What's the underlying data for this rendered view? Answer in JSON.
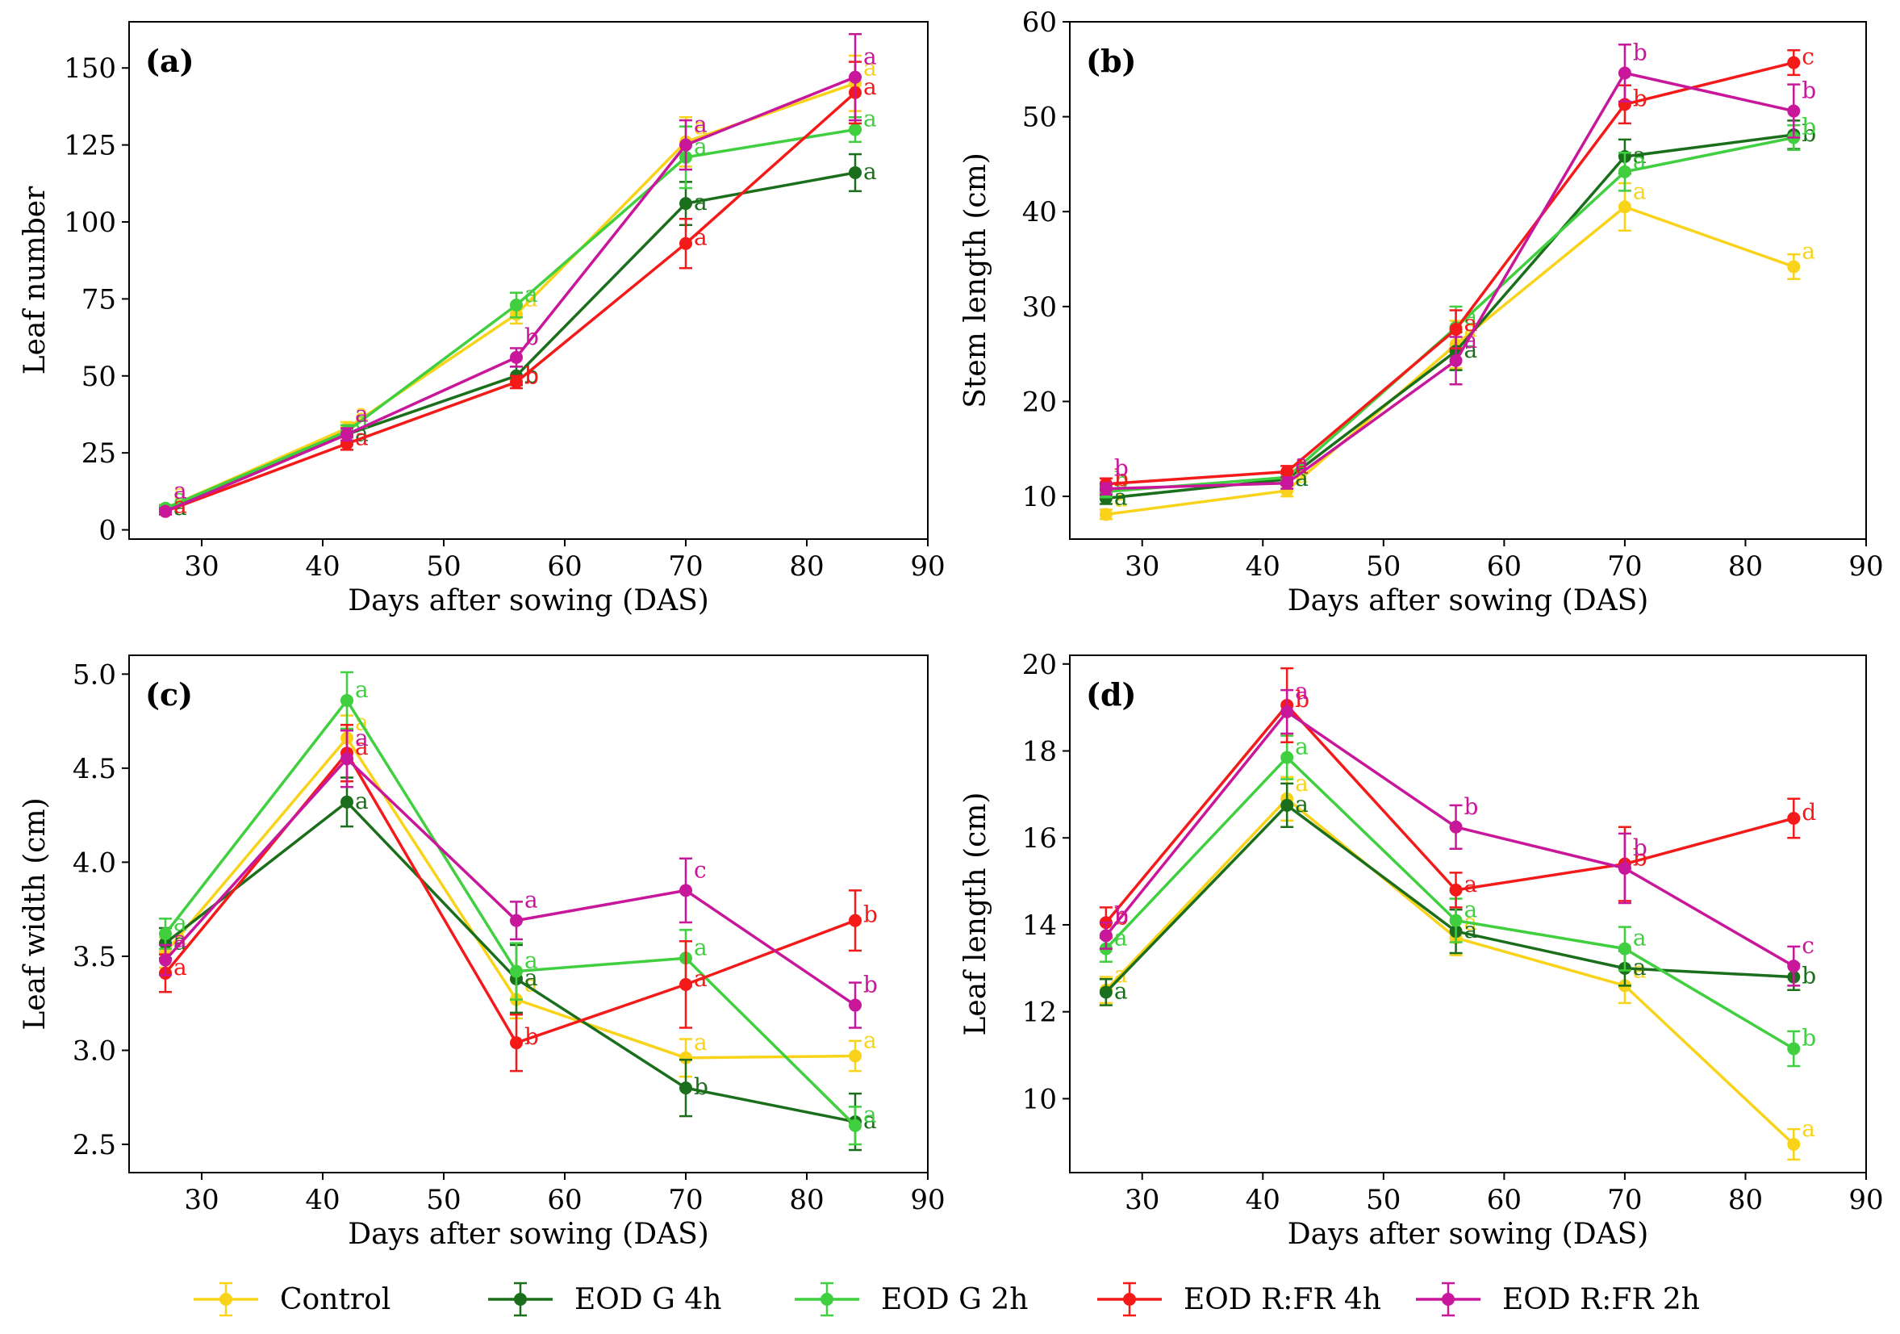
{
  "chart_data": {
    "type": "line",
    "x_label": "Days after sowing (DAS)",
    "series_names": [
      "Control",
      "EOD G 4h",
      "EOD G 2h",
      "EOD R:FR 4h",
      "EOD R:FR 2h"
    ],
    "series_colors": [
      "#f8d31a",
      "#1b6e1b",
      "#3fcf3f",
      "#f51a1a",
      "#c8179a"
    ],
    "panels": [
      {
        "label": "(a)",
        "ylabel": "Leaf number",
        "xlim": [
          24,
          90
        ],
        "ylim": [
          -3,
          165
        ],
        "xticks": [
          30,
          40,
          50,
          60,
          70,
          80,
          90
        ],
        "yticks": [
          0,
          25,
          50,
          75,
          100,
          125,
          150
        ],
        "x": [
          27,
          42,
          56,
          70,
          84
        ],
        "series": [
          {
            "name": "Control",
            "values": [
              7,
              33,
              70,
              126,
              145
            ],
            "errors": [
              1,
              2,
              3,
              8,
              9
            ],
            "letters": [
              "a",
              "a",
              "a",
              "a",
              "a"
            ]
          },
          {
            "name": "EOD G 4h",
            "values": [
              7,
              31,
              50,
              106,
              116
            ],
            "errors": [
              1,
              2,
              3,
              7,
              6
            ],
            "letters": [
              "a",
              "a",
              "b",
              "a",
              "a"
            ]
          },
          {
            "name": "EOD G 2h",
            "values": [
              7,
              32,
              73,
              121,
              130
            ],
            "errors": [
              1,
              2,
              4,
              10,
              4
            ],
            "letters": [
              "a",
              "a",
              "a",
              "a",
              "a"
            ]
          },
          {
            "name": "EOD R:FR 4h",
            "values": [
              6,
              28,
              48,
              93,
              142
            ],
            "errors": [
              1,
              2,
              2,
              8,
              10
            ],
            "letters": [
              "a",
              "a",
              "b",
              "a",
              "a"
            ]
          },
          {
            "name": "EOD R:FR 2h",
            "values": [
              6,
              31,
              56,
              125,
              147
            ],
            "errors": [
              1,
              2,
              3,
              8,
              14
            ],
            "letters": [
              "a",
              "a",
              "b",
              "a",
              "a"
            ]
          }
        ]
      },
      {
        "label": "(b)",
        "ylabel": "Stem length (cm)",
        "xlim": [
          24,
          90
        ],
        "ylim": [
          5.5,
          60
        ],
        "xticks": [
          30,
          40,
          50,
          60,
          70,
          80,
          90
        ],
        "yticks": [
          10,
          20,
          30,
          40,
          50,
          60
        ],
        "x": [
          27,
          42,
          56,
          70,
          84
        ],
        "series": [
          {
            "name": "Control",
            "values": [
              8.1,
              10.6,
              26.0,
              40.5,
              34.2
            ],
            "errors": [
              0.5,
              0.6,
              2.5,
              2.5,
              1.3
            ],
            "letters": [
              "a",
              "a",
              "a",
              "a",
              "a"
            ]
          },
          {
            "name": "EOD G 4h",
            "values": [
              9.8,
              11.8,
              25.3,
              45.8,
              48.1
            ],
            "errors": [
              0.6,
              0.6,
              2.0,
              1.8,
              1.5
            ],
            "letters": [
              "a",
              "a",
              "a",
              "a",
              "b"
            ]
          },
          {
            "name": "EOD G 2h",
            "values": [
              10.5,
              12.0,
              27.8,
              44.2,
              47.8
            ],
            "errors": [
              0.6,
              0.6,
              2.2,
              2.0,
              1.3
            ],
            "letters": [
              "b",
              "a",
              "a",
              "a",
              "b"
            ]
          },
          {
            "name": "EOD R:FR 4h",
            "values": [
              11.3,
              12.6,
              27.6,
              51.3,
              55.7
            ],
            "errors": [
              0.6,
              0.6,
              2.0,
              2.0,
              1.3
            ],
            "letters": [
              "b",
              "a",
              "a",
              "b",
              "c"
            ]
          },
          {
            "name": "EOD R:FR 2h",
            "values": [
              10.8,
              11.4,
              24.3,
              54.6,
              50.6
            ],
            "errors": [
              0.6,
              0.6,
              2.5,
              3.0,
              2.8
            ],
            "letters": [
              "b",
              "a",
              "a",
              "b",
              "b"
            ]
          }
        ]
      },
      {
        "label": "(c)",
        "ylabel": "Leaf width (cm)",
        "xlim": [
          24,
          90
        ],
        "ylim": [
          2.35,
          5.1
        ],
        "xticks": [
          30,
          40,
          50,
          60,
          70,
          80,
          90
        ],
        "yticks": [
          2.5,
          3.0,
          3.5,
          4.0,
          4.5,
          5.0
        ],
        "yticks_labels": [
          "2.5",
          "3.0",
          "3.5",
          "4.0",
          "4.5",
          "5.0"
        ],
        "x": [
          27,
          42,
          56,
          70,
          84
        ],
        "series": [
          {
            "name": "Control",
            "values": [
              3.52,
              4.66,
              3.27,
              2.96,
              2.97
            ],
            "errors": [
              0.08,
              0.12,
              0.1,
              0.1,
              0.08
            ],
            "letters": [
              "a",
              "a",
              "a",
              "a",
              "a"
            ]
          },
          {
            "name": "EOD G 4h",
            "values": [
              3.57,
              4.32,
              3.38,
              2.8,
              2.62
            ],
            "errors": [
              0.08,
              0.13,
              0.18,
              0.15,
              0.15
            ],
            "letters": [
              "a",
              "a",
              "a",
              "b",
              "a"
            ]
          },
          {
            "name": "EOD G 2h",
            "values": [
              3.62,
              4.86,
              3.42,
              3.49,
              2.6
            ],
            "errors": [
              0.08,
              0.15,
              0.15,
              0.15,
              0.1
            ],
            "letters": [
              "a",
              "a",
              "a",
              "a",
              "a"
            ]
          },
          {
            "name": "EOD R:FR 4h",
            "values": [
              3.41,
              4.58,
              3.04,
              3.35,
              3.69
            ],
            "errors": [
              0.1,
              0.15,
              0.15,
              0.23,
              0.16
            ],
            "letters": [
              "a",
              "a",
              "b",
              "a",
              "b"
            ]
          },
          {
            "name": "EOD R:FR 2h",
            "values": [
              3.48,
              4.55,
              3.69,
              3.85,
              3.24
            ],
            "errors": [
              0.08,
              0.15,
              0.1,
              0.17,
              0.12
            ],
            "letters": [
              "a",
              "a",
              "a",
              "c",
              "b"
            ]
          }
        ]
      },
      {
        "label": "(d)",
        "ylabel": "Leaf length (cm)",
        "xlim": [
          24,
          90
        ],
        "ylim": [
          8.3,
          20.2
        ],
        "xticks": [
          30,
          40,
          50,
          60,
          70,
          80,
          90
        ],
        "yticks": [
          10,
          12,
          14,
          16,
          18,
          20
        ],
        "x": [
          27,
          42,
          56,
          70,
          84
        ],
        "series": [
          {
            "name": "Control",
            "values": [
              12.5,
              16.9,
              13.7,
              12.6,
              8.95
            ],
            "errors": [
              0.3,
              0.5,
              0.4,
              0.4,
              0.35
            ],
            "letters": [
              "a",
              "a",
              "a",
              "a",
              "a"
            ]
          },
          {
            "name": "EOD G 4h",
            "values": [
              12.45,
              16.75,
              13.85,
              13.0,
              12.8
            ],
            "errors": [
              0.3,
              0.5,
              0.5,
              0.4,
              0.3
            ],
            "letters": [
              "a",
              "a",
              "a",
              "a",
              "b"
            ]
          },
          {
            "name": "EOD G 2h",
            "values": [
              13.45,
              17.85,
              14.1,
              13.45,
              11.15
            ],
            "errors": [
              0.3,
              0.5,
              0.5,
              0.5,
              0.4
            ],
            "letters": [
              "a",
              "a",
              "a",
              "a",
              "b"
            ]
          },
          {
            "name": "EOD R:FR 4h",
            "values": [
              14.05,
              19.05,
              14.8,
              15.4,
              16.45
            ],
            "errors": [
              0.35,
              0.85,
              0.4,
              0.85,
              0.45
            ],
            "letters": [
              "b",
              "b",
              "a",
              "b",
              "d"
            ]
          },
          {
            "name": "EOD R:FR 2h",
            "values": [
              13.75,
              18.9,
              16.25,
              15.3,
              13.05
            ],
            "errors": [
              0.3,
              0.5,
              0.5,
              0.8,
              0.45
            ],
            "letters": [
              "b",
              "a",
              "b",
              "b",
              "c"
            ]
          }
        ]
      }
    ]
  }
}
